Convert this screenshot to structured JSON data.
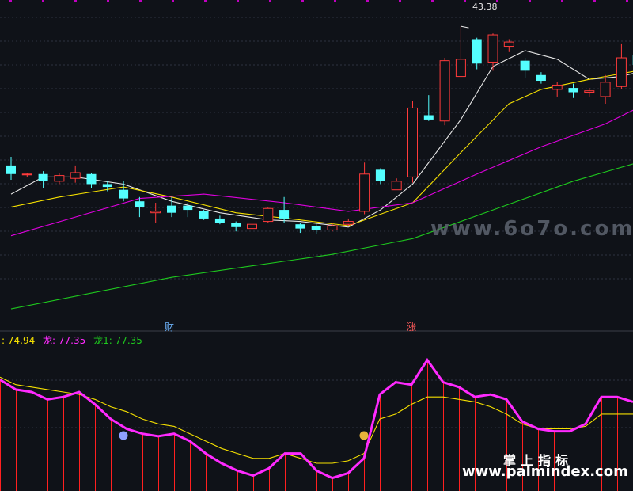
{
  "chart_data": [
    {
      "type": "candlestick",
      "panel": "price",
      "high_label": "43.38",
      "x": [
        0,
        1,
        2,
        3,
        4,
        5,
        6,
        7,
        8,
        9,
        10,
        11,
        12,
        13,
        14,
        15,
        16,
        17,
        18,
        19,
        20,
        21,
        22,
        23,
        24,
        25,
        26,
        27,
        28,
        29,
        30,
        31,
        32,
        33,
        34,
        35,
        36,
        37,
        38,
        39
      ],
      "candles": [
        {
          "o": 33.6,
          "c": 33.0,
          "h": 34.2,
          "l": 32.6
        },
        {
          "o": 33.0,
          "c": 33.0,
          "h": 33.1,
          "l": 32.8
        },
        {
          "o": 33.0,
          "c": 32.5,
          "h": 33.2,
          "l": 32.0
        },
        {
          "o": 32.5,
          "c": 32.9,
          "h": 33.1,
          "l": 32.3
        },
        {
          "o": 32.7,
          "c": 33.1,
          "h": 33.6,
          "l": 32.4
        },
        {
          "o": 33.0,
          "c": 32.3,
          "h": 33.1,
          "l": 32.0
        },
        {
          "o": 32.3,
          "c": 32.1,
          "h": 32.5,
          "l": 31.8
        },
        {
          "o": 31.9,
          "c": 31.3,
          "h": 32.5,
          "l": 31.1
        },
        {
          "o": 31.1,
          "c": 30.7,
          "h": 31.4,
          "l": 30.0
        },
        {
          "o": 30.3,
          "c": 30.4,
          "h": 31.0,
          "l": 29.6
        },
        {
          "o": 30.8,
          "c": 30.3,
          "h": 31.4,
          "l": 30.0
        },
        {
          "o": 30.8,
          "c": 30.5,
          "h": 31.0,
          "l": 30.0
        },
        {
          "o": 30.4,
          "c": 29.9,
          "h": 30.5,
          "l": 29.8
        },
        {
          "o": 29.9,
          "c": 29.6,
          "h": 30.1,
          "l": 29.5
        },
        {
          "o": 29.6,
          "c": 29.3,
          "h": 29.7,
          "l": 29.0
        },
        {
          "o": 29.2,
          "c": 29.5,
          "h": 29.8,
          "l": 29.0
        },
        {
          "o": 29.7,
          "c": 30.6,
          "h": 30.7,
          "l": 29.6
        },
        {
          "o": 30.5,
          "c": 29.9,
          "h": 31.4,
          "l": 29.6
        },
        {
          "o": 29.5,
          "c": 29.2,
          "h": 29.6,
          "l": 28.9
        },
        {
          "o": 29.4,
          "c": 29.1,
          "h": 29.6,
          "l": 28.8
        },
        {
          "o": 29.1,
          "c": 29.4,
          "h": 29.6,
          "l": 29.0
        },
        {
          "o": 29.5,
          "c": 29.7,
          "h": 29.9,
          "l": 29.4
        },
        {
          "o": 30.4,
          "c": 33.0,
          "h": 33.8,
          "l": 30.2
        },
        {
          "o": 33.3,
          "c": 32.5,
          "h": 33.4,
          "l": 32.3
        },
        {
          "o": 31.9,
          "c": 32.5,
          "h": 32.7,
          "l": 31.9
        },
        {
          "o": 32.8,
          "c": 37.6,
          "h": 38.1,
          "l": 32.4
        },
        {
          "o": 37.1,
          "c": 36.8,
          "h": 38.5,
          "l": 36.7
        },
        {
          "o": 36.7,
          "c": 40.9,
          "h": 41.1,
          "l": 36.4
        },
        {
          "o": 39.8,
          "c": 41.0,
          "h": 43.3,
          "l": 39.8
        },
        {
          "o": 42.4,
          "c": 40.7,
          "h": 42.5,
          "l": 40.3
        },
        {
          "o": 40.8,
          "c": 42.7,
          "h": 42.8,
          "l": 40.2
        },
        {
          "o": 41.9,
          "c": 42.2,
          "h": 42.4,
          "l": 41.5
        },
        {
          "o": 40.9,
          "c": 40.2,
          "h": 41.1,
          "l": 39.7
        },
        {
          "o": 39.9,
          "c": 39.5,
          "h": 40.1,
          "l": 39.3
        },
        {
          "o": 38.9,
          "c": 39.2,
          "h": 39.4,
          "l": 38.4
        },
        {
          "o": 39.0,
          "c": 38.7,
          "h": 39.3,
          "l": 38.3
        },
        {
          "o": 38.7,
          "c": 38.8,
          "h": 39.0,
          "l": 38.4
        },
        {
          "o": 38.4,
          "c": 39.4,
          "h": 39.9,
          "l": 37.9
        },
        {
          "o": 39.1,
          "c": 41.1,
          "h": 42.1,
          "l": 38.9
        },
        {
          "o": 41.3,
          "c": 40.6,
          "h": 41.4,
          "l": 40.3
        }
      ],
      "ma_lines": [
        {
          "color": "#e6e6e6",
          "points": [
            [
              0,
              31.6
            ],
            [
              2,
              32.8
            ],
            [
              4,
              32.8
            ],
            [
              7,
              32.3
            ],
            [
              10,
              31.1
            ],
            [
              13,
              30.3
            ],
            [
              16,
              29.8
            ],
            [
              18,
              29.7
            ],
            [
              21,
              29.3
            ],
            [
              23,
              30.5
            ],
            [
              25,
              32.3
            ],
            [
              28,
              36.8
            ],
            [
              30,
              40.5
            ],
            [
              32,
              41.6
            ],
            [
              34,
              41.0
            ],
            [
              36,
              39.6
            ],
            [
              38,
              39.8
            ],
            [
              39,
              40.1
            ]
          ]
        },
        {
          "color": "#f5e000",
          "points": [
            [
              0,
              30.7
            ],
            [
              3,
              31.4
            ],
            [
              7,
              32.1
            ],
            [
              10,
              31.4
            ],
            [
              14,
              30.3
            ],
            [
              18,
              29.8
            ],
            [
              21,
              29.4
            ],
            [
              25,
              31.0
            ],
            [
              28,
              34.5
            ],
            [
              31,
              37.9
            ],
            [
              33,
              38.9
            ],
            [
              36,
              39.6
            ],
            [
              39,
              40.2
            ]
          ]
        },
        {
          "color": "#e000e0",
          "points": [
            [
              0,
              28.7
            ],
            [
              4,
              30.0
            ],
            [
              8,
              31.3
            ],
            [
              12,
              31.6
            ],
            [
              17,
              31.0
            ],
            [
              21,
              30.4
            ],
            [
              25,
              31.0
            ],
            [
              29,
              33.0
            ],
            [
              33,
              34.9
            ],
            [
              37,
              36.5
            ],
            [
              39,
              37.6
            ]
          ]
        },
        {
          "color": "#1ec81e",
          "points": [
            [
              0,
              23.6
            ],
            [
              5,
              24.7
            ],
            [
              10,
              25.8
            ],
            [
              15,
              26.6
            ],
            [
              20,
              27.4
            ],
            [
              25,
              28.5
            ],
            [
              30,
              30.5
            ],
            [
              35,
              32.5
            ],
            [
              39,
              33.8
            ]
          ]
        }
      ],
      "ylim": [
        22.5,
        44.8
      ]
    },
    {
      "type": "line",
      "panel": "indicator",
      "legend": [
        {
          "text": ": 74.94",
          "color": "#f5e000"
        },
        {
          "text": "龙: 77.35",
          "color": "#ff2aff"
        },
        {
          "text": "龙1: 77.35",
          "color": "#1ec81e"
        }
      ],
      "series": [
        {
          "color": "#ff2aff",
          "values": [
            74,
            70,
            69,
            66,
            67,
            69,
            64,
            58,
            54,
            52,
            51,
            52,
            49,
            44,
            40,
            37,
            35,
            38,
            44,
            44,
            37,
            34,
            36,
            42,
            68,
            73,
            72,
            82,
            73,
            71,
            67,
            68,
            66,
            57,
            54,
            53,
            53,
            56,
            67,
            67,
            65
          ]
        },
        {
          "color": "#f5e000",
          "values": [
            75,
            72,
            71,
            70,
            69,
            68,
            66,
            63,
            61,
            58,
            56,
            55,
            52,
            49,
            46,
            44,
            42,
            42,
            44,
            42,
            40,
            40,
            41,
            44,
            58,
            60,
            64,
            67,
            67,
            66,
            65,
            63,
            60,
            56,
            54,
            54,
            54,
            55,
            60,
            60,
            60
          ]
        }
      ],
      "ylim": [
        30,
        88
      ]
    }
  ],
  "signals": {
    "cai": "财",
    "zhang": "涨"
  },
  "watermarks": {
    "site": "www.6o7o.com",
    "cn": "掌上指标",
    "url": "www.palmindex.com"
  }
}
